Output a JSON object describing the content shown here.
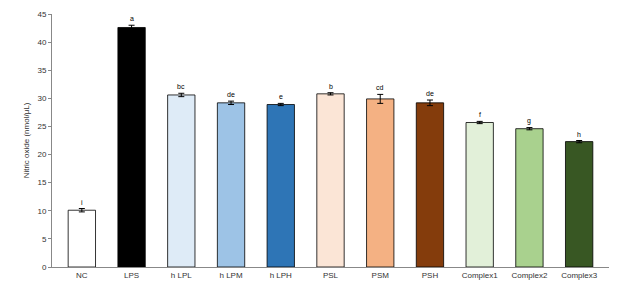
{
  "chart_data": {
    "type": "bar",
    "y_label": "Nitric oxide (nmol/μL)",
    "categories": [
      "NC",
      "LPS",
      "h LPL",
      "h LPM",
      "h LPH",
      "PSL",
      "PSM",
      "PSH",
      "Complex1",
      "Complex2",
      "Complex3"
    ],
    "values": [
      10.1,
      42.6,
      30.6,
      29.2,
      28.9,
      30.8,
      29.9,
      29.2,
      25.7,
      24.6,
      22.3
    ],
    "errors": [
      0.3,
      0.4,
      0.3,
      0.3,
      0.2,
      0.2,
      0.8,
      0.5,
      0.2,
      0.2,
      0.2
    ],
    "annotations": [
      "i",
      "a",
      "bc",
      "de",
      "e",
      "b",
      "cd",
      "de",
      "f",
      "g",
      "h"
    ],
    "colors": [
      "#ffffff",
      "#000000",
      "#deebf7",
      "#9dc3e6",
      "#2e75b6",
      "#fbe5d6",
      "#f4b183",
      "#843c0c",
      "#e2f0d9",
      "#a9d18e",
      "#385723"
    ],
    "ylim": [
      0,
      45
    ],
    "yticks": [
      0,
      5,
      10,
      15,
      20,
      25,
      30,
      35,
      40,
      45
    ],
    "grid": false
  }
}
